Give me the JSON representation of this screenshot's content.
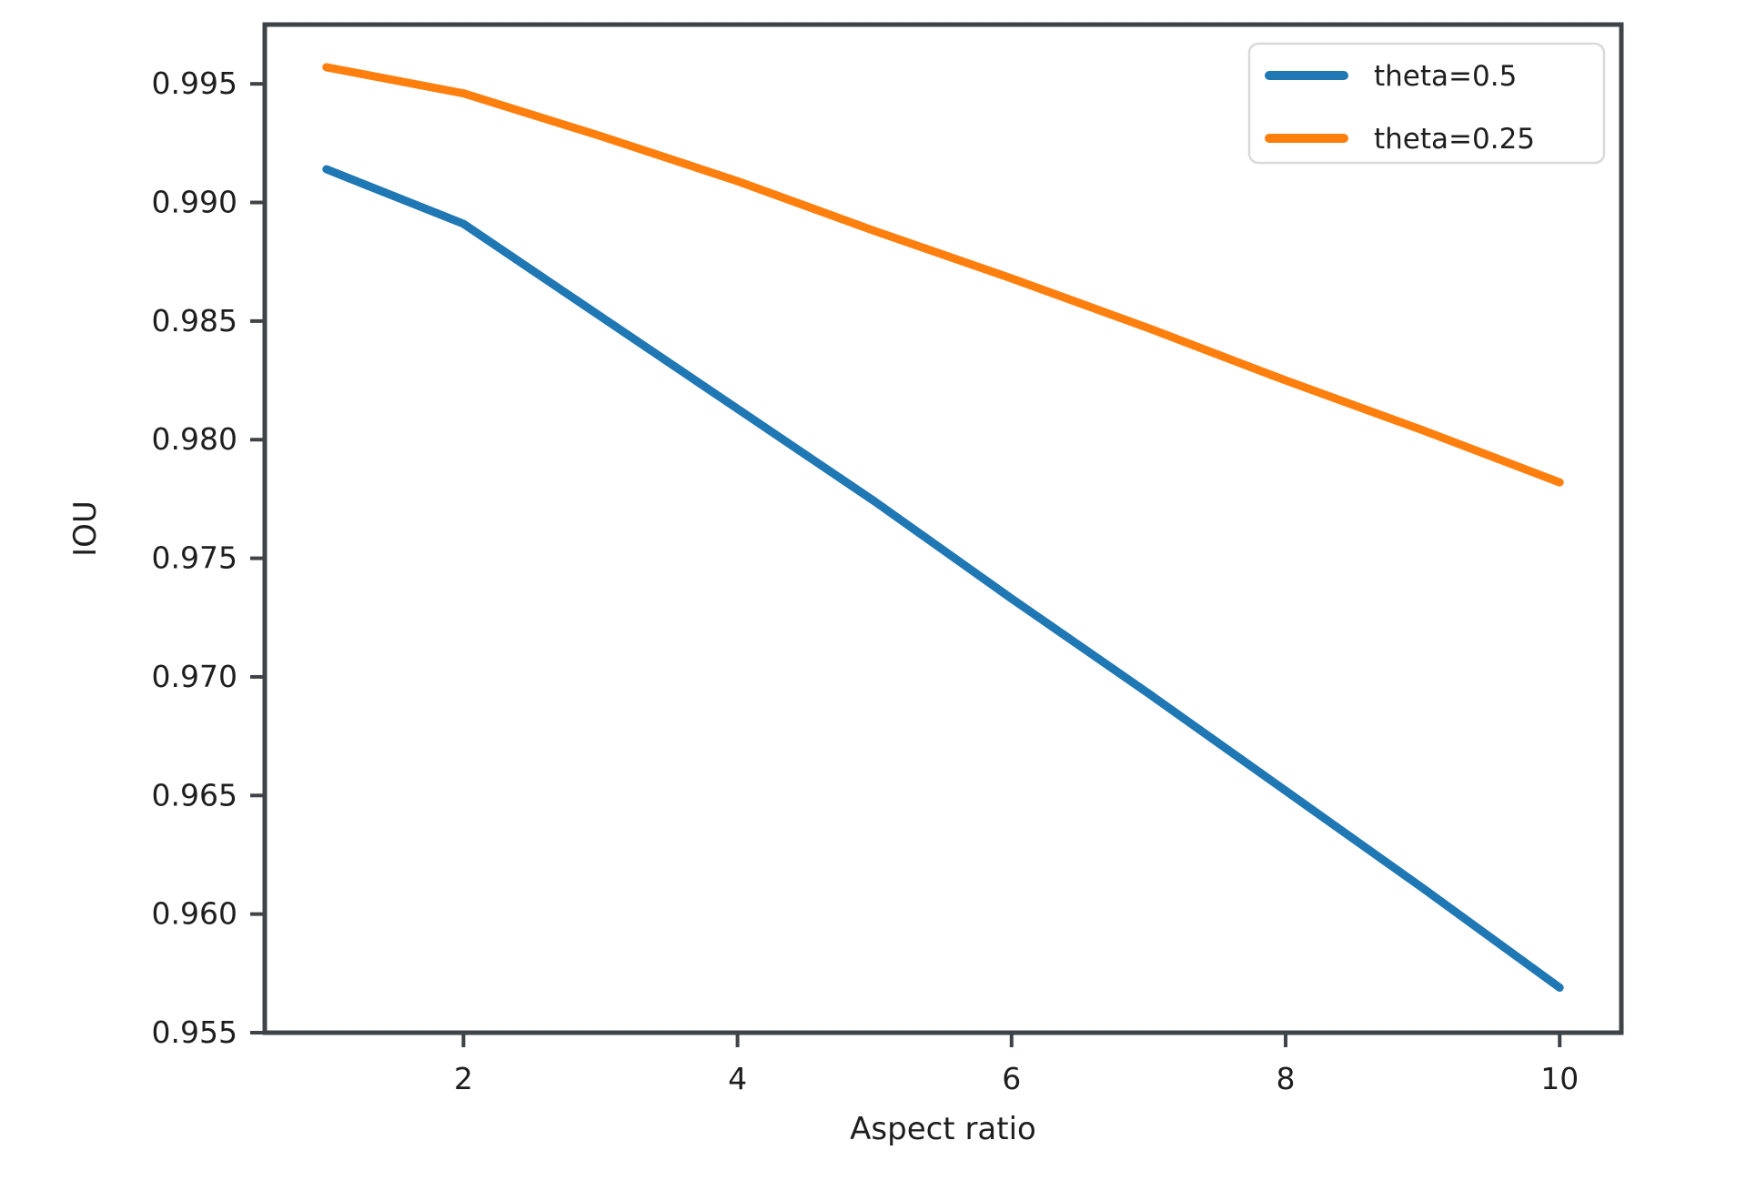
{
  "chart_data": {
    "type": "line",
    "title": "",
    "xlabel": "Aspect ratio",
    "ylabel": "IOU",
    "xlim": [
      0.55,
      10.45
    ],
    "ylim": [
      0.955,
      0.9975
    ],
    "x_ticks": [
      2,
      4,
      6,
      8,
      10
    ],
    "y_ticks": [
      0.955,
      0.96,
      0.965,
      0.97,
      0.975,
      0.98,
      0.985,
      0.99,
      0.995
    ],
    "y_tick_decimals": 3,
    "grid": false,
    "legend_position": "upper right",
    "x": [
      1,
      2,
      3,
      4,
      5,
      6,
      7,
      8,
      9,
      10
    ],
    "series": [
      {
        "name": "theta=0.5",
        "color": "#1f77b4",
        "values": [
          0.9914,
          0.9891,
          0.9852,
          0.9813,
          0.9774,
          0.9733,
          0.9693,
          0.9652,
          0.9611,
          0.9569
        ]
      },
      {
        "name": "theta=0.25",
        "color": "#ff7f0e",
        "values": [
          0.9957,
          0.9946,
          0.9928,
          0.9909,
          0.9888,
          0.9868,
          0.9847,
          0.9825,
          0.9804,
          0.9782
        ]
      }
    ],
    "colors": {
      "spine": "#3e4347",
      "text": "#1e1e1e",
      "legend_border": "#d9d9d9",
      "background": "#ffffff"
    }
  }
}
